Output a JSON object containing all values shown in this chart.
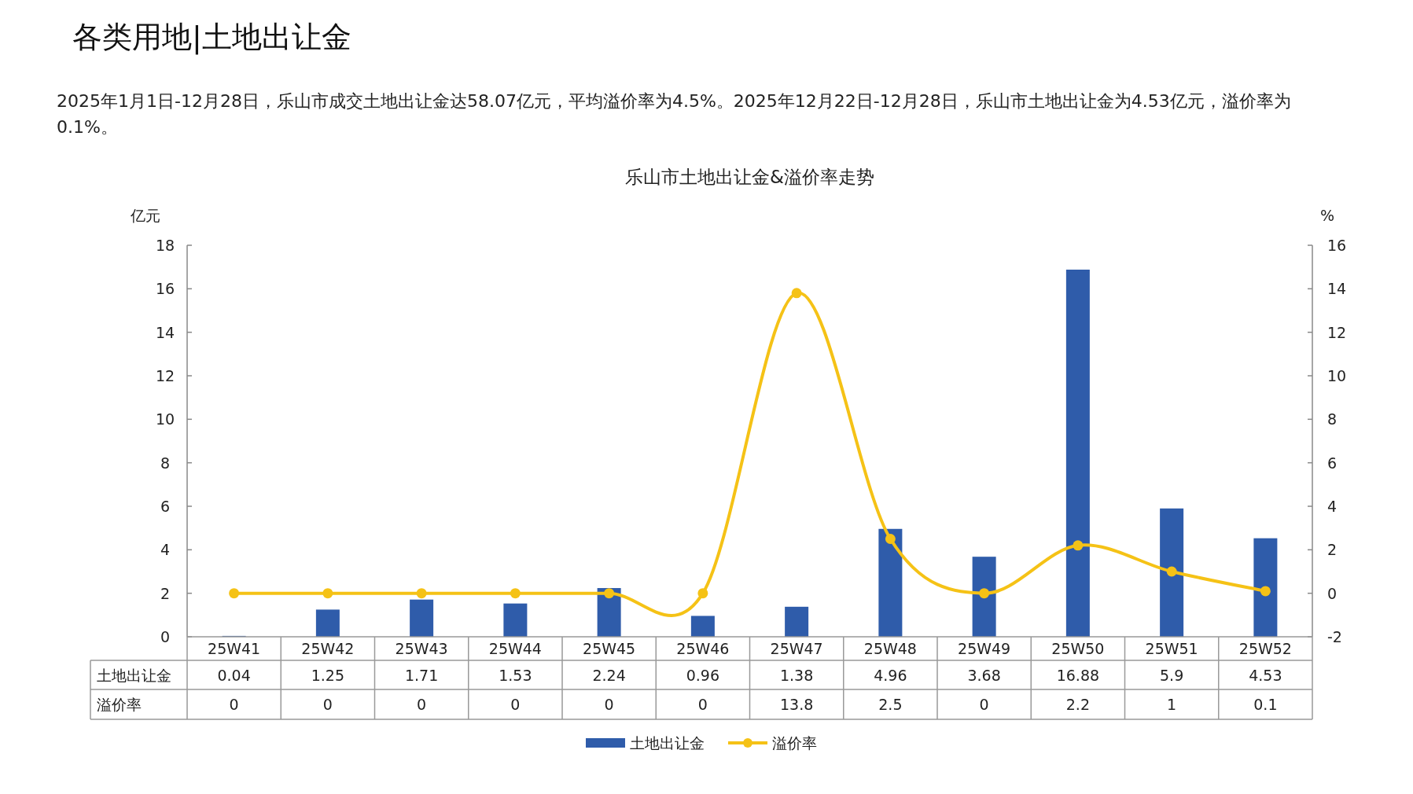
{
  "chart_data": {
    "type": "bar",
    "title": "乐山市土地出让金&溢价率走势",
    "annotations": [
      "各类用地|土地出让金",
      "2025年1月1日-12月28日，乐山市成交土地出让金达58.07亿元，平均溢价率为4.5%。2025年12月22日-12月28日，乐山市土地出让金为4.53亿元，溢价率为0.1%。"
    ],
    "ylabel": "亿元",
    "y2label": "%",
    "categories": [
      "25W41",
      "25W42",
      "25W43",
      "25W44",
      "25W45",
      "25W46",
      "25W47",
      "25W48",
      "25W49",
      "25W50",
      "25W51",
      "25W52"
    ],
    "series": [
      {
        "name": "土地出让金",
        "color": "#2f5caa",
        "values": [
          0.04,
          1.25,
          1.71,
          1.53,
          2.24,
          0.96,
          1.38,
          4.96,
          3.68,
          16.88,
          5.9,
          4.53
        ]
      },
      {
        "name": "溢价率",
        "type": "line",
        "axis": "y2",
        "color": "#f5c216",
        "marker": "circle",
        "values": [
          0,
          0,
          0,
          0,
          0,
          0,
          13.8,
          2.5,
          0,
          2.2,
          1,
          0.1
        ]
      }
    ],
    "ylim": [
      0,
      18
    ],
    "yticks": [
      0,
      2,
      4,
      6,
      8,
      10,
      12,
      14,
      16,
      18
    ],
    "y2lim": [
      -2,
      16
    ],
    "y2ticks": [
      -2,
      0,
      2,
      4,
      6,
      8,
      10,
      12,
      14,
      16
    ],
    "data_labels": true,
    "grid": false,
    "legend": "bottom"
  }
}
